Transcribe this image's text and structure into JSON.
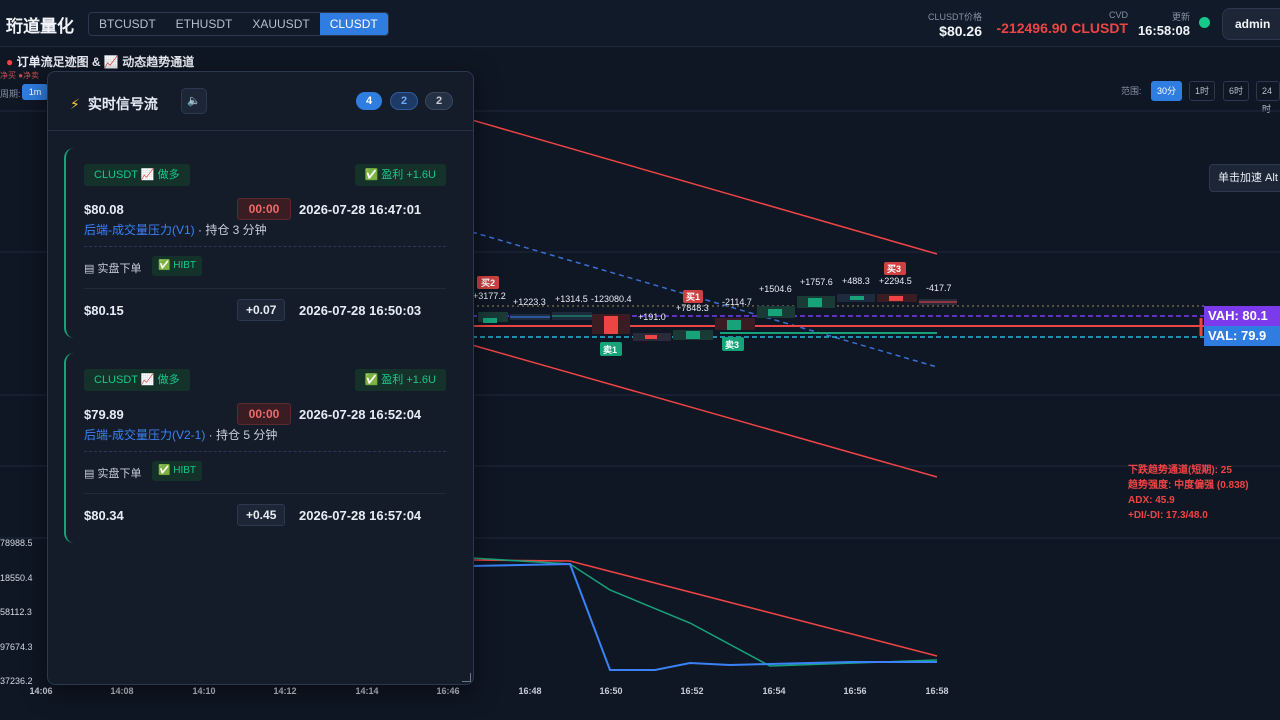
{
  "app": {
    "brand": "珩道量化",
    "user": "admin"
  },
  "symbols": [
    "BTCUSDT",
    "ETHUSDT",
    "XAUUSDT",
    "CLUSDT"
  ],
  "active_symbol": "CLUSDT",
  "stats": {
    "price_label": "CLUSDT价格",
    "price": "$80.26",
    "cvd_label": "CVD",
    "cvd": "-212496.90 CLUSDT",
    "update_label": "更新",
    "update_time": "16:58:08"
  },
  "chart": {
    "title": "订单流足迹图 & 📈 动态趋势通道",
    "legend_text": "净买 ●净卖",
    "period_label": "周期:",
    "period_value": "1m",
    "range_label": "范围:",
    "ranges": [
      "30分",
      "1时",
      "6时",
      "24时"
    ],
    "active_range": "30分",
    "tooltip": "单击加速 Alt",
    "vah": "VAH: 80.1",
    "val": "VAL: 79.9",
    "trend_info": [
      "下跌趋势通道(短期): 25",
      "趋势强度: 中度偏强 (0.838)",
      "ADX: 45.9",
      "+DI/-DI: 17.3/48.0"
    ],
    "cvd_axis_labels": [
      "78988.5",
      "18550.4",
      "58112.3",
      "97674.3",
      "37236.2"
    ],
    "x_ticks": [
      "14:06",
      "14:08",
      "14:10",
      "14:12",
      "14:14",
      "16:46",
      "16:48",
      "16:50",
      "16:52",
      "16:54",
      "16:56",
      "16:58"
    ],
    "delta_labels": [
      "+3177.2",
      "+1223.3",
      "+1314.5",
      "-123080.4",
      "+191.0",
      "+7848.3",
      "-2114.7",
      "+1504.6",
      "+1757.6",
      "+488.3",
      "+2294.5",
      "-417.7"
    ],
    "markers": {
      "buy2": "买2",
      "buy1": "买1",
      "buy3": "买3",
      "sell1": "卖1",
      "sell3": "卖3"
    },
    "colors": {
      "up": "#16c98b",
      "down": "#ef4444",
      "vah": "#7c3aed",
      "val": "#2f7de1",
      "channel": "#ef4444",
      "mid": "#3b6fd6"
    }
  },
  "signal_panel": {
    "title": "实时信号流",
    "badges": [
      "4",
      "2",
      "2"
    ],
    "cards": [
      {
        "tag": "CLUSDT 📈 做多",
        "profit": "✅ 盈利 +1.6U",
        "entry_price": "$80.08",
        "timer": "00:00",
        "entry_time": "2026-07-28 16:47:01",
        "strategy": "后端-成交量压力(V1)",
        "hold": " · 持仓 3 分钟",
        "live_label": "实盘下单",
        "exchange": "✅ HIBT",
        "exit_price": "$80.15",
        "delta": "+0.07",
        "exit_time": "2026-07-28 16:50:03"
      },
      {
        "tag": "CLUSDT 📈 做多",
        "profit": "✅ 盈利 +1.6U",
        "entry_price": "$79.89",
        "timer": "00:00",
        "entry_time": "2026-07-28 16:52:04",
        "strategy": "后端-成交量压力(V2-1)",
        "hold": " · 持仓 5 分钟",
        "live_label": "实盘下单",
        "exchange": "✅ HIBT",
        "exit_price": "$80.34",
        "delta": "+0.45",
        "exit_time": "2026-07-28 16:57:04"
      }
    ]
  }
}
